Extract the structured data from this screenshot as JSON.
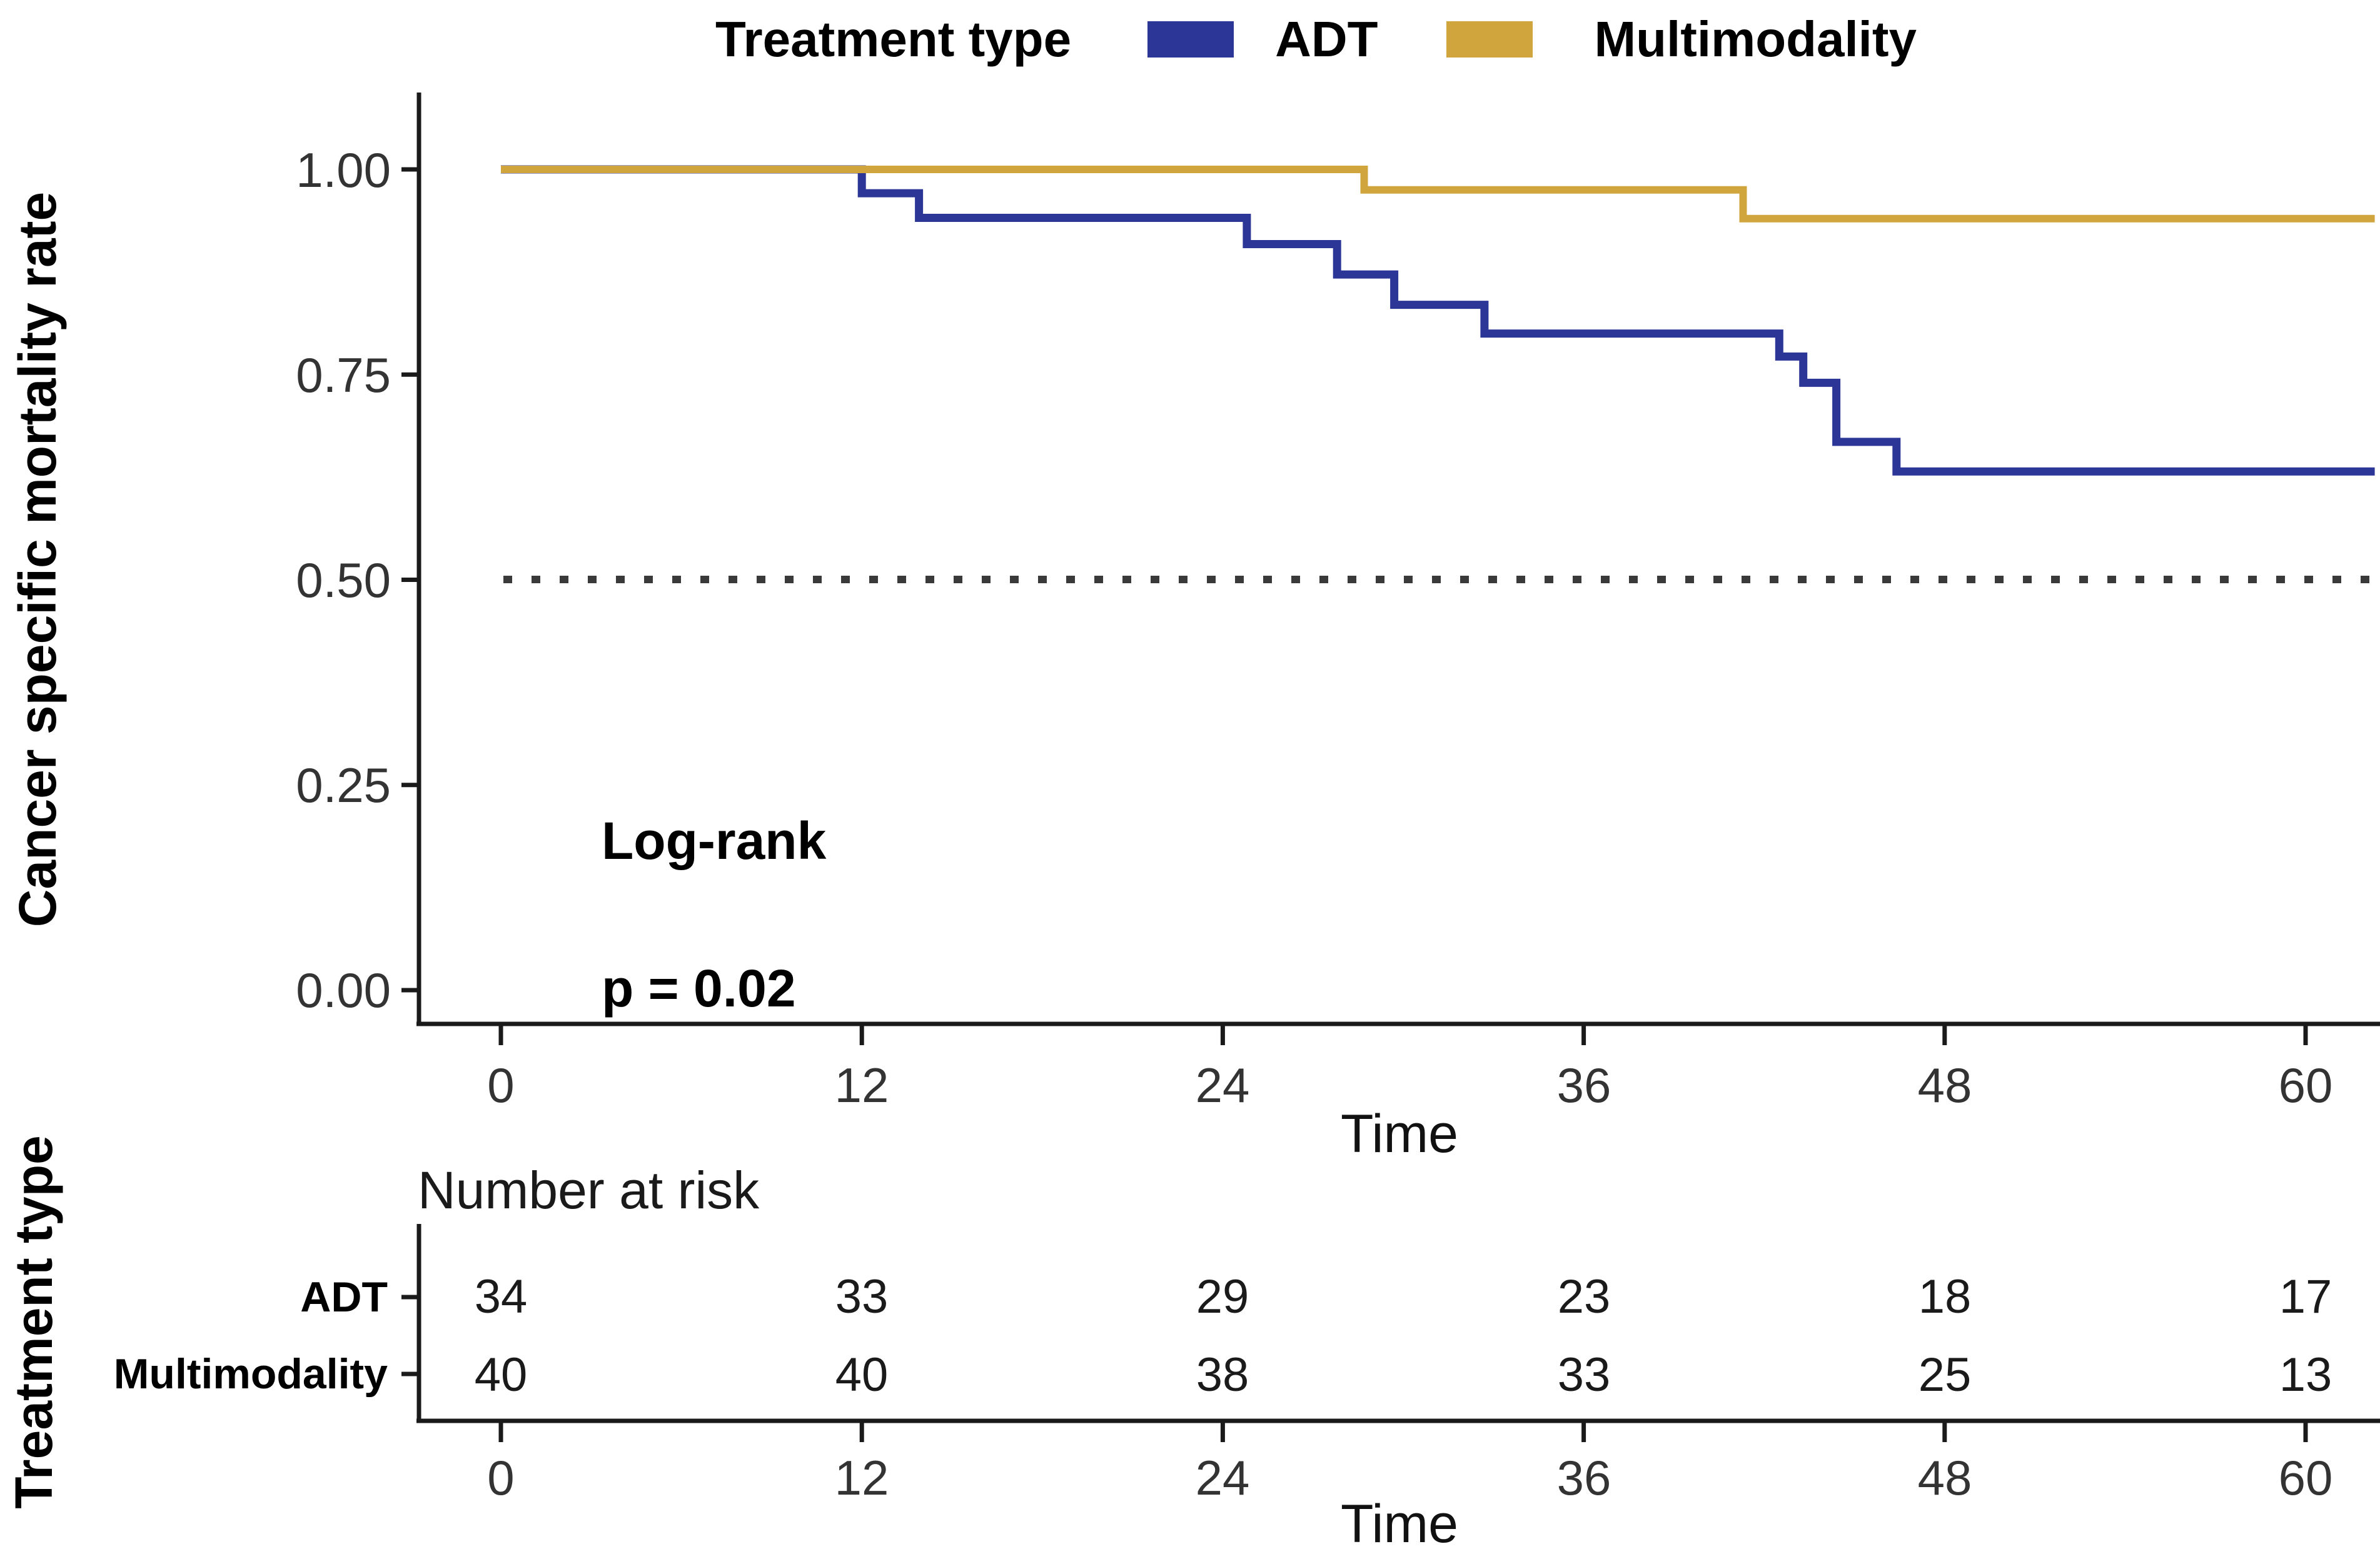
{
  "legend": {
    "title": "Treatment type",
    "items": [
      {
        "label": "ADT",
        "color": "#2c3697"
      },
      {
        "label": "Multimodality",
        "color": "#d1a53e"
      }
    ]
  },
  "chart_data": {
    "type": "line",
    "subtype": "kaplan-meier-step",
    "ylabel": "Cancer specific mortality rate",
    "xlabel": "Time",
    "xlim": [
      0,
      62.3
    ],
    "ylim": [
      0,
      1.0
    ],
    "x_ticks": [
      0,
      12,
      24,
      36,
      48,
      60
    ],
    "y_ticks": [
      1.0,
      0.75,
      0.5,
      0.25,
      0
    ],
    "y_tick_labels": [
      "1.00",
      "0.75",
      "0.50",
      "0.25",
      "0.00"
    ],
    "grid": "off",
    "legend_position": "top",
    "reference_line_y": 0.5,
    "annotation": "Log-rank\np = 0.02",
    "series": [
      {
        "name": "ADT",
        "color": "#2c3697",
        "stroke_width": 13,
        "points": [
          [
            0,
            1.0
          ],
          [
            12,
            1.0
          ],
          [
            12,
            0.971
          ],
          [
            13.9,
            0.971
          ],
          [
            13.9,
            0.941
          ],
          [
            24.8,
            0.941
          ],
          [
            24.8,
            0.909
          ],
          [
            27.8,
            0.909
          ],
          [
            27.8,
            0.872
          ],
          [
            29.7,
            0.872
          ],
          [
            29.7,
            0.835
          ],
          [
            32.7,
            0.835
          ],
          [
            32.7,
            0.8
          ],
          [
            42.5,
            0.8
          ],
          [
            42.5,
            0.772
          ],
          [
            43.3,
            0.772
          ],
          [
            43.3,
            0.74
          ],
          [
            44.4,
            0.74
          ],
          [
            44.4,
            0.668
          ],
          [
            46.4,
            0.668
          ],
          [
            46.4,
            0.632
          ],
          [
            62.3,
            0.632
          ]
        ]
      },
      {
        "name": "Multimodality",
        "color": "#d1a53e",
        "stroke_width": 12,
        "points": [
          [
            0,
            1.0
          ],
          [
            28.7,
            1.0
          ],
          [
            28.7,
            0.975
          ],
          [
            41.3,
            0.975
          ],
          [
            41.3,
            0.94
          ],
          [
            62.3,
            0.94
          ]
        ]
      }
    ]
  },
  "annotation": {
    "line1": "Log-rank",
    "line2": "p = 0.02"
  },
  "risk_table": {
    "title": "Number at risk",
    "ylabel": "Treatment type",
    "xlabel": "Time",
    "times": [
      0,
      12,
      24,
      36,
      48,
      60
    ],
    "rows": [
      {
        "label": "ADT",
        "counts": [
          "34",
          "33",
          "29",
          "23",
          "18",
          "17"
        ]
      },
      {
        "label": "Multimodality",
        "counts": [
          "40",
          "40",
          "38",
          "33",
          "25",
          "13"
        ]
      }
    ]
  }
}
